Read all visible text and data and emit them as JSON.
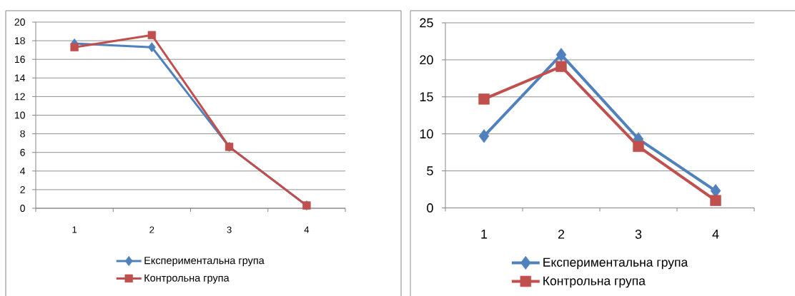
{
  "chart_data": [
    {
      "type": "line",
      "categories": [
        "1",
        "2",
        "3",
        "4"
      ],
      "series": [
        {
          "name": "Експериментальна група",
          "color": "#4f81bd",
          "marker": "diamond",
          "values": [
            17.7,
            17.3,
            6.6,
            0.3
          ]
        },
        {
          "name": "Контрольна група",
          "color": "#c0504d",
          "marker": "square",
          "values": [
            17.3,
            18.6,
            6.6,
            0.3
          ]
        }
      ],
      "ylim": [
        0,
        20
      ],
      "yticks": [
        0,
        2,
        4,
        6,
        8,
        10,
        12,
        14,
        16,
        18,
        20
      ],
      "grid": "y",
      "legend": "bottom"
    },
    {
      "type": "line",
      "categories": [
        "1",
        "2",
        "3",
        "4"
      ],
      "series": [
        {
          "name": "Експериментальна група",
          "color": "#4f81bd",
          "marker": "diamond",
          "values": [
            9.7,
            20.7,
            9.3,
            2.3
          ]
        },
        {
          "name": "Контрольна група",
          "color": "#c0504d",
          "marker": "square",
          "values": [
            14.7,
            19.1,
            8.3,
            1.0
          ]
        }
      ],
      "ylim": [
        0,
        25
      ],
      "yticks": [
        0,
        5,
        10,
        15,
        20,
        25
      ],
      "grid": "y",
      "legend": "bottom"
    }
  ]
}
